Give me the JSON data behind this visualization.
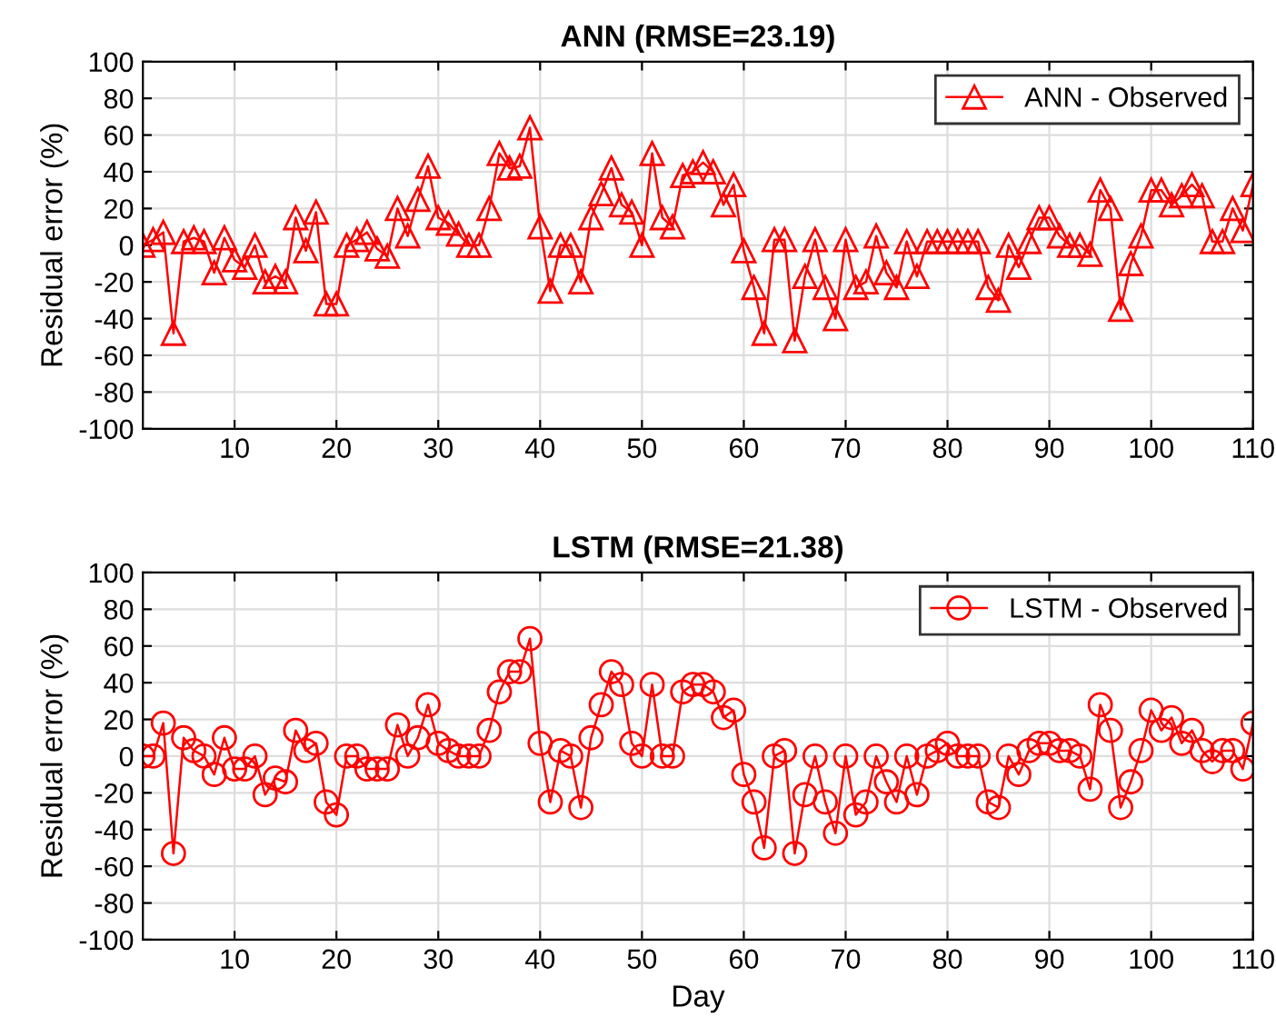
{
  "chart_data": [
    {
      "type": "line",
      "title": "ANN (RMSE=23.19)",
      "ylabel": "Residual error (%)",
      "marker": "triangle",
      "grid": true,
      "legend": "top right",
      "xlim": [
        1,
        110
      ],
      "xticks": [
        10,
        20,
        30,
        40,
        50,
        60,
        70,
        80,
        90,
        100,
        110
      ],
      "ylim": [
        -100,
        100
      ],
      "yticks": [
        -100,
        -80,
        -60,
        -40,
        -20,
        0,
        20,
        40,
        60,
        80,
        100
      ],
      "series": [
        {
          "name": "ANN - Observed",
          "color": "#ff0000",
          "x": [
            1,
            2,
            3,
            4,
            5,
            6,
            7,
            8,
            9,
            10,
            11,
            12,
            13,
            14,
            15,
            16,
            17,
            18,
            19,
            20,
            21,
            22,
            23,
            24,
            25,
            26,
            27,
            28,
            29,
            30,
            31,
            32,
            33,
            34,
            35,
            36,
            37,
            38,
            39,
            40,
            41,
            42,
            43,
            44,
            45,
            46,
            47,
            48,
            49,
            50,
            51,
            52,
            53,
            54,
            55,
            56,
            57,
            58,
            59,
            60,
            61,
            62,
            63,
            64,
            65,
            66,
            67,
            68,
            69,
            70,
            71,
            72,
            73,
            74,
            75,
            76,
            77,
            78,
            79,
            80,
            81,
            82,
            83,
            84,
            85,
            86,
            87,
            88,
            89,
            90,
            91,
            92,
            93,
            94,
            95,
            96,
            97,
            98,
            99,
            100,
            101,
            102,
            103,
            104,
            105,
            106,
            107,
            108,
            109,
            110
          ],
          "values": [
            0,
            3,
            7,
            -48,
            2,
            4,
            2,
            -15,
            4,
            -8,
            -12,
            0,
            -20,
            -17,
            -20,
            15,
            -3,
            18,
            -32,
            -32,
            0,
            3,
            7,
            -2,
            -6,
            20,
            5,
            25,
            43,
            15,
            12,
            6,
            0,
            0,
            20,
            50,
            42,
            43,
            64,
            10,
            -25,
            0,
            0,
            -20,
            15,
            28,
            42,
            22,
            18,
            0,
            50,
            15,
            10,
            38,
            40,
            45,
            40,
            22,
            33,
            -3,
            -23,
            -48,
            3,
            3,
            -52,
            -17,
            3,
            -23,
            -40,
            3,
            -23,
            -20,
            5,
            -15,
            -23,
            2,
            -17,
            2,
            2,
            2,
            2,
            2,
            2,
            -23,
            -30,
            0,
            -12,
            2,
            15,
            15,
            5,
            0,
            0,
            -5,
            30,
            20,
            -35,
            -10,
            5,
            30,
            30,
            22,
            27,
            33,
            27,
            2,
            2,
            20,
            8,
            33
          ]
        }
      ]
    },
    {
      "type": "line",
      "title": "LSTM (RMSE=21.38)",
      "xlabel": "Day",
      "ylabel": "Residual error (%)",
      "marker": "circle",
      "grid": true,
      "legend": "top right",
      "xlim": [
        1,
        110
      ],
      "xticks": [
        10,
        20,
        30,
        40,
        50,
        60,
        70,
        80,
        90,
        100,
        110
      ],
      "ylim": [
        -100,
        100
      ],
      "yticks": [
        -100,
        -80,
        -60,
        -40,
        -20,
        0,
        20,
        40,
        60,
        80,
        100
      ],
      "series": [
        {
          "name": "LSTM - Observed",
          "color": "#ff0000",
          "x": [
            1,
            2,
            3,
            4,
            5,
            6,
            7,
            8,
            9,
            10,
            11,
            12,
            13,
            14,
            15,
            16,
            17,
            18,
            19,
            20,
            21,
            22,
            23,
            24,
            25,
            26,
            27,
            28,
            29,
            30,
            31,
            32,
            33,
            34,
            35,
            36,
            37,
            38,
            39,
            40,
            41,
            42,
            43,
            44,
            45,
            46,
            47,
            48,
            49,
            50,
            51,
            52,
            53,
            54,
            55,
            56,
            57,
            58,
            59,
            60,
            61,
            62,
            63,
            64,
            65,
            66,
            67,
            68,
            69,
            70,
            71,
            72,
            73,
            74,
            75,
            76,
            77,
            78,
            79,
            80,
            81,
            82,
            83,
            84,
            85,
            86,
            87,
            88,
            89,
            90,
            91,
            92,
            93,
            94,
            95,
            96,
            97,
            98,
            99,
            100,
            101,
            102,
            103,
            104,
            105,
            106,
            107,
            108,
            109,
            110
          ],
          "values": [
            0,
            0,
            18,
            -53,
            10,
            3,
            0,
            -10,
            10,
            -7,
            -7,
            0,
            -21,
            -12,
            -14,
            14,
            3,
            7,
            -25,
            -32,
            0,
            0,
            -7,
            -7,
            -7,
            17,
            0,
            10,
            28,
            7,
            3,
            0,
            0,
            0,
            14,
            35,
            46,
            46,
            64,
            7,
            -25,
            3,
            0,
            -28,
            10,
            28,
            46,
            39,
            7,
            0,
            39,
            0,
            0,
            35,
            39,
            39,
            35,
            21,
            25,
            -10,
            -25,
            -50,
            0,
            3,
            -53,
            -21,
            0,
            -25,
            -42,
            0,
            -32,
            -25,
            0,
            -14,
            -25,
            0,
            -21,
            0,
            3,
            7,
            0,
            0,
            0,
            -25,
            -28,
            0,
            -10,
            3,
            7,
            7,
            3,
            3,
            0,
            -18,
            28,
            14,
            -28,
            -14,
            3,
            25,
            14,
            21,
            7,
            14,
            3,
            -3,
            3,
            3,
            -7,
            18
          ]
        }
      ]
    }
  ]
}
